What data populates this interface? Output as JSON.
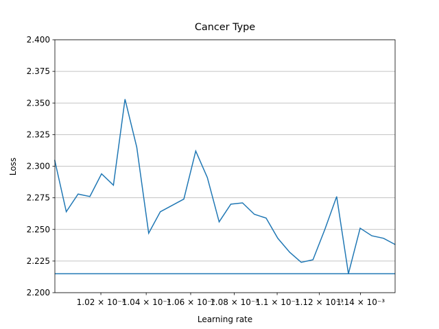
{
  "chart_data": {
    "type": "line",
    "title": "Cancer Type",
    "x_label": "Learning rate",
    "y_label": "Loss",
    "x_scale": "log",
    "grid_y": true,
    "x": [
      0.001,
      0.001005,
      0.0010101,
      0.0010152,
      0.0010203,
      0.0010255,
      0.0010306,
      0.0010358,
      0.0010411,
      0.0010463,
      0.0010516,
      0.0010569,
      0.0010623,
      0.0010676,
      0.001073,
      0.0010784,
      0.0010838,
      0.0010893,
      0.0010948,
      0.0011003,
      0.0011059,
      0.0011114,
      0.001117,
      0.0011227,
      0.0011284,
      0.0011341,
      0.0011398,
      0.0011455,
      0.0011513,
      0.0011571
    ],
    "series": [
      {
        "color": "#1f77b4",
        "values": [
          2.305,
          2.264,
          2.278,
          2.276,
          2.294,
          2.285,
          2.353,
          2.315,
          2.247,
          2.264,
          2.269,
          2.274,
          2.312,
          2.291,
          2.256,
          2.27,
          2.271,
          2.262,
          2.259,
          2.243,
          2.232,
          2.224,
          2.226,
          2.25,
          2.276,
          2.215,
          2.251,
          2.245,
          2.243,
          2.238
        ]
      }
    ],
    "hline": {
      "value": 2.215,
      "color": "#1f77b4"
    },
    "xlim": [
      0.0010001,
      0.001157
    ],
    "xticks": [
      {
        "value": 0.00102,
        "label": "1.02 × 10⁻³"
      },
      {
        "value": 0.00104,
        "label": "1.04 × 10⁻³"
      },
      {
        "value": 0.00106,
        "label": "1.06 × 10⁻³"
      },
      {
        "value": 0.00108,
        "label": "1.08 × 10⁻³"
      },
      {
        "value": 0.0011,
        "label": "1.1 × 10⁻³"
      },
      {
        "value": 0.00112,
        "label": "1.12 × 10⁻³"
      },
      {
        "value": 0.00114,
        "label": "1.14 × 10⁻³"
      }
    ],
    "ylim": [
      2.2,
      2.4
    ],
    "yticks": [
      {
        "value": 2.2,
        "label": "2.200"
      },
      2.225,
      {
        "value": 2.25,
        "label": "2.250"
      },
      2.275,
      {
        "value": 2.3,
        "label": "2.300"
      },
      2.325,
      {
        "value": 2.35,
        "label": "2.350"
      },
      2.375,
      {
        "value": 2.4,
        "label": "2.400"
      }
    ]
  }
}
